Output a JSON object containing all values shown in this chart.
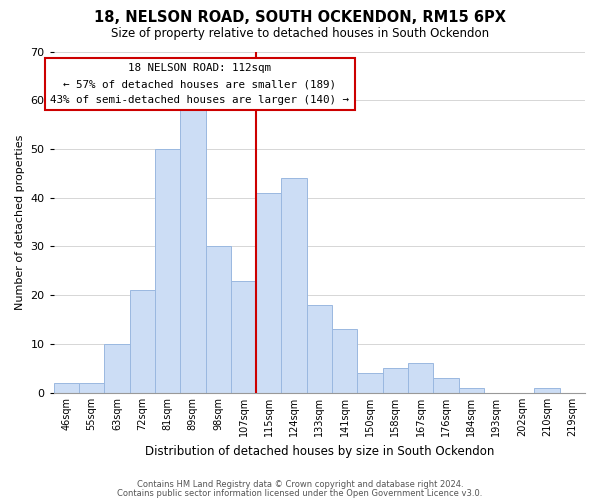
{
  "title": "18, NELSON ROAD, SOUTH OCKENDON, RM15 6PX",
  "subtitle": "Size of property relative to detached houses in South Ockendon",
  "xlabel": "Distribution of detached houses by size in South Ockendon",
  "ylabel": "Number of detached properties",
  "footer1": "Contains HM Land Registry data © Crown copyright and database right 2024.",
  "footer2": "Contains public sector information licensed under the Open Government Licence v3.0.",
  "bin_labels": [
    "46sqm",
    "55sqm",
    "63sqm",
    "72sqm",
    "81sqm",
    "89sqm",
    "98sqm",
    "107sqm",
    "115sqm",
    "124sqm",
    "133sqm",
    "141sqm",
    "150sqm",
    "158sqm",
    "167sqm",
    "176sqm",
    "184sqm",
    "193sqm",
    "202sqm",
    "210sqm",
    "219sqm"
  ],
  "bar_values": [
    2,
    2,
    10,
    21,
    50,
    58,
    30,
    23,
    41,
    44,
    18,
    13,
    4,
    5,
    6,
    3,
    1,
    0,
    0,
    1,
    0
  ],
  "bar_color": "#ccddf5",
  "bar_edge_color": "#9ab8e0",
  "vline_color": "#cc0000",
  "vline_position": 8,
  "annotation_title": "18 NELSON ROAD: 112sqm",
  "annotation_line2": "← 57% of detached houses are smaller (189)",
  "annotation_line3": "43% of semi-detached houses are larger (140) →",
  "annotation_box_color": "#ffffff",
  "annotation_box_edge": "#cc0000",
  "ylim": [
    0,
    70
  ],
  "yticks": [
    0,
    10,
    20,
    30,
    40,
    50,
    60,
    70
  ]
}
